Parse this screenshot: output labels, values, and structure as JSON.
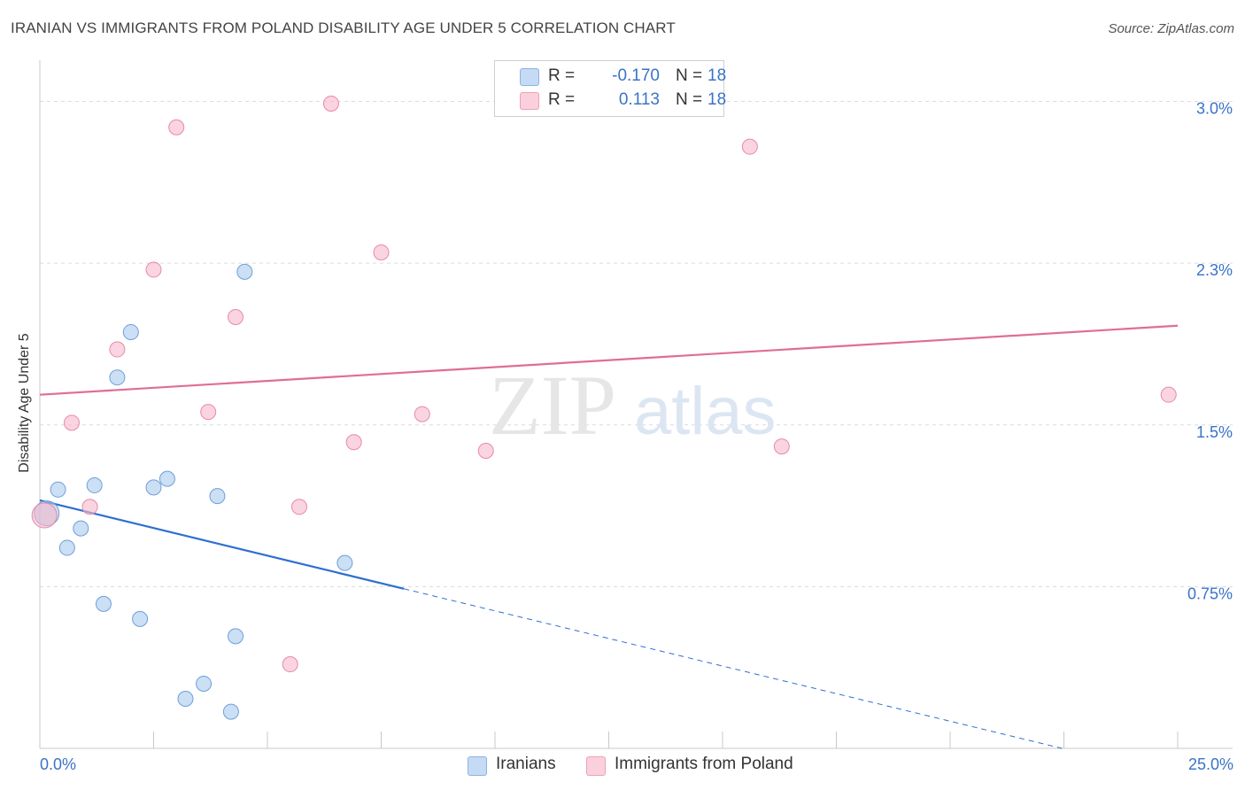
{
  "header": {
    "title": "IRANIAN VS IMMIGRANTS FROM POLAND DISABILITY AGE UNDER 5 CORRELATION CHART",
    "source": "Source: ZipAtlas.com"
  },
  "legend": {
    "rows": [
      {
        "r_label": "R =",
        "r_value": "-0.170",
        "n_label": "N =",
        "n_value": "18",
        "color": "#a9c9ef"
      },
      {
        "r_label": "R =",
        "r_value": "0.113",
        "n_label": "N =",
        "n_value": "18",
        "color": "#f7b8cb"
      }
    ]
  },
  "bottom_legend": {
    "series1": "Iranians",
    "series2": "Immigrants from Poland"
  },
  "watermark": {
    "zip": "ZIP",
    "atlas": "atlas"
  },
  "chart_data": {
    "type": "scatter",
    "title": "IRANIAN VS IMMIGRANTS FROM POLAND DISABILITY AGE UNDER 5 CORRELATION CHART",
    "xlabel": "",
    "ylabel": "Disability Age Under 5",
    "xlim": [
      0,
      25
    ],
    "ylim": [
      0,
      3.15
    ],
    "x_tick_labels": {
      "min": "0.0%",
      "max": "25.0%"
    },
    "y_ticks": [
      0.75,
      1.5,
      2.25,
      3.0
    ],
    "y_tick_labels": [
      "0.75%",
      "1.5%",
      "2.3%",
      "3.0%"
    ],
    "grid": true,
    "colors": {
      "iranians": "#a9c9ef",
      "iranians_edge": "#6f9fd8",
      "iranians_line": "#2f6fd0",
      "poland": "#f7b8cb",
      "poland_edge": "#e88aa6",
      "poland_line": "#e06d96",
      "tick_text": "#3a73c8",
      "grid": "#dcdcdc"
    },
    "series": [
      {
        "name": "Iranians",
        "points": [
          {
            "x": 0.15,
            "y": 1.09,
            "size": 28
          },
          {
            "x": 0.4,
            "y": 1.2
          },
          {
            "x": 0.6,
            "y": 0.93
          },
          {
            "x": 0.9,
            "y": 1.02
          },
          {
            "x": 1.2,
            "y": 1.22
          },
          {
            "x": 1.4,
            "y": 0.67
          },
          {
            "x": 1.7,
            "y": 1.72
          },
          {
            "x": 2.0,
            "y": 1.93
          },
          {
            "x": 2.2,
            "y": 0.6
          },
          {
            "x": 2.5,
            "y": 1.21
          },
          {
            "x": 2.8,
            "y": 1.25
          },
          {
            "x": 3.2,
            "y": 0.23
          },
          {
            "x": 3.6,
            "y": 0.3
          },
          {
            "x": 3.9,
            "y": 1.17
          },
          {
            "x": 4.2,
            "y": 0.17
          },
          {
            "x": 4.3,
            "y": 0.52
          },
          {
            "x": 4.5,
            "y": 2.21
          },
          {
            "x": 6.7,
            "y": 0.86
          }
        ],
        "trend": {
          "x0": 0,
          "y0": 1.15,
          "x1": 8.0,
          "y1": 0.74,
          "x_dash_end": 25.0,
          "y_dash_end": -0.13
        }
      },
      {
        "name": "Immigrants from Poland",
        "points": [
          {
            "x": 0.1,
            "y": 1.08,
            "size": 28
          },
          {
            "x": 0.7,
            "y": 1.51
          },
          {
            "x": 1.1,
            "y": 1.12
          },
          {
            "x": 1.7,
            "y": 1.85
          },
          {
            "x": 2.5,
            "y": 2.22
          },
          {
            "x": 3.0,
            "y": 2.88
          },
          {
            "x": 3.7,
            "y": 1.56
          },
          {
            "x": 4.3,
            "y": 2.0
          },
          {
            "x": 5.5,
            "y": 0.39
          },
          {
            "x": 5.7,
            "y": 1.12
          },
          {
            "x": 6.4,
            "y": 2.99
          },
          {
            "x": 6.9,
            "y": 1.42
          },
          {
            "x": 7.5,
            "y": 2.3
          },
          {
            "x": 8.4,
            "y": 1.55
          },
          {
            "x": 9.8,
            "y": 1.38
          },
          {
            "x": 15.6,
            "y": 2.79
          },
          {
            "x": 16.3,
            "y": 1.4
          },
          {
            "x": 24.8,
            "y": 1.64
          }
        ],
        "trend": {
          "x0": 0,
          "y0": 1.64,
          "x1": 25.0,
          "y1": 1.96
        }
      }
    ]
  }
}
